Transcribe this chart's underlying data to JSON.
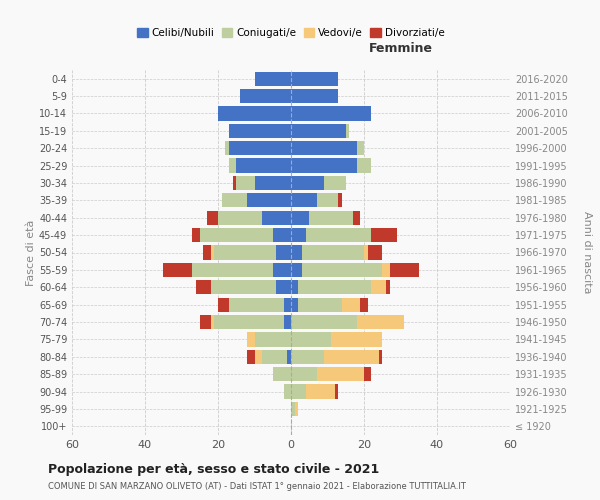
{
  "age_groups": [
    "100+",
    "95-99",
    "90-94",
    "85-89",
    "80-84",
    "75-79",
    "70-74",
    "65-69",
    "60-64",
    "55-59",
    "50-54",
    "45-49",
    "40-44",
    "35-39",
    "30-34",
    "25-29",
    "20-24",
    "15-19",
    "10-14",
    "5-9",
    "0-4"
  ],
  "birth_years": [
    "≤ 1920",
    "1921-1925",
    "1926-1930",
    "1931-1935",
    "1936-1940",
    "1941-1945",
    "1946-1950",
    "1951-1955",
    "1956-1960",
    "1961-1965",
    "1966-1970",
    "1971-1975",
    "1976-1980",
    "1981-1985",
    "1986-1990",
    "1991-1995",
    "1996-2000",
    "2001-2005",
    "2006-2010",
    "2011-2015",
    "2016-2020"
  ],
  "male": {
    "celibi": [
      0,
      0,
      0,
      0,
      1,
      0,
      2,
      2,
      4,
      5,
      4,
      5,
      8,
      12,
      10,
      15,
      17,
      17,
      20,
      14,
      10
    ],
    "coniugati": [
      0,
      0,
      2,
      5,
      7,
      10,
      19,
      15,
      18,
      22,
      17,
      20,
      12,
      7,
      5,
      2,
      1,
      0,
      0,
      0,
      0
    ],
    "vedovi": [
      0,
      0,
      0,
      0,
      2,
      2,
      1,
      0,
      0,
      0,
      1,
      0,
      0,
      0,
      0,
      0,
      0,
      0,
      0,
      0,
      0
    ],
    "divorziati": [
      0,
      0,
      0,
      0,
      2,
      0,
      3,
      3,
      4,
      8,
      2,
      2,
      3,
      0,
      1,
      0,
      0,
      0,
      0,
      0,
      0
    ]
  },
  "female": {
    "nubili": [
      0,
      0,
      0,
      0,
      0,
      0,
      0,
      2,
      2,
      3,
      3,
      4,
      5,
      7,
      9,
      18,
      18,
      15,
      22,
      13,
      13
    ],
    "coniugate": [
      0,
      1,
      4,
      7,
      9,
      11,
      18,
      12,
      20,
      22,
      17,
      18,
      12,
      6,
      6,
      4,
      2,
      1,
      0,
      0,
      0
    ],
    "vedove": [
      0,
      1,
      8,
      13,
      15,
      14,
      13,
      5,
      4,
      2,
      1,
      0,
      0,
      0,
      0,
      0,
      0,
      0,
      0,
      0,
      0
    ],
    "divorziate": [
      0,
      0,
      1,
      2,
      1,
      0,
      0,
      2,
      1,
      8,
      4,
      7,
      2,
      1,
      0,
      0,
      0,
      0,
      0,
      0,
      0
    ]
  },
  "colors": {
    "celibi": "#4472C4",
    "coniugati": "#BFCE9E",
    "vedovi": "#F5C87A",
    "divorziati": "#C0392B"
  },
  "title": "Popolazione per età, sesso e stato civile - 2021",
  "subtitle": "COMUNE DI SAN MARZANO OLIVETO (AT) - Dati ISTAT 1° gennaio 2021 - Elaborazione TUTTITALIA.IT",
  "ylabel_left": "Fasce di età",
  "ylabel_right": "Anni di nascita",
  "xlabel_right": "Femmine",
  "xlim": 60,
  "background_color": "#f9f9f9",
  "grid_color": "#cccccc"
}
